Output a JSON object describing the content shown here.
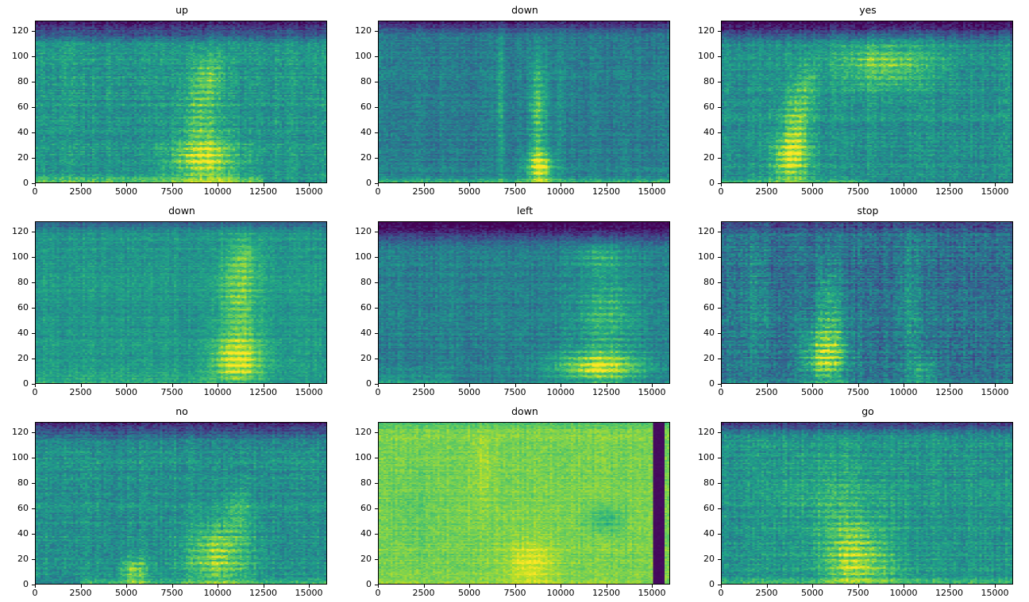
{
  "figure": {
    "background": "#ffffff",
    "rows": 3,
    "cols": 3,
    "tick_color": "#000000",
    "title_color": "#000000",
    "colormap": {
      "name": "viridis",
      "stops": [
        "#440154",
        "#482475",
        "#414487",
        "#355f8d",
        "#2a788e",
        "#21918c",
        "#22a884",
        "#44bf70",
        "#7ad151",
        "#bddf26",
        "#fde725"
      ]
    }
  },
  "chart_data": [
    {
      "type": "heatmap",
      "title": "up",
      "xlabel": "",
      "ylabel": "",
      "xlim": [
        0,
        16000
      ],
      "ylim": [
        0,
        128
      ],
      "xticks": [
        0,
        2500,
        5000,
        7500,
        10000,
        12500,
        15000
      ],
      "yticks": [
        0,
        20,
        40,
        60,
        80,
        100,
        120
      ],
      "grid": false,
      "legend": false,
      "description": "Spectrogram of spoken word 'up': bright energy burst around t=8000-11000 concentrated at low frequency bins, bright band along the bottom, darker band at top frequencies.",
      "render": {
        "seed": 1,
        "base": 0.52,
        "noise": 0.1,
        "top_dark": {
          "start": 0.85,
          "drop": 0.22
        },
        "bottom_band": {
          "h": 0.05,
          "amp": 0.28,
          "x0": 0.0,
          "x1": 0.78
        },
        "blobs": [
          {
            "cx": 0.58,
            "cy": 0.14,
            "sx": 0.11,
            "sy": 0.14,
            "amp": 0.4
          },
          {
            "cx": 0.57,
            "cy": 0.45,
            "sx": 0.06,
            "sy": 0.3,
            "amp": 0.25
          },
          {
            "cx": 0.6,
            "cy": 0.68,
            "sx": 0.05,
            "sy": 0.12,
            "amp": 0.15
          }
        ],
        "dark_stripes": []
      }
    },
    {
      "type": "heatmap",
      "title": "down",
      "xlabel": "",
      "ylabel": "",
      "xlim": [
        0,
        16000
      ],
      "ylim": [
        0,
        128
      ],
      "xticks": [
        0,
        2500,
        5000,
        7500,
        10000,
        12500,
        15000
      ],
      "yticks": [
        0,
        20,
        40,
        60,
        80,
        100,
        120
      ],
      "grid": false,
      "legend": false,
      "description": "Spectrogram of spoken word 'down': dark blue-teal background with a narrow bright vertical stripe near t=9000 spanning all frequencies, strongest yellow blob at the bottom, faint vertical stripe near t=6500.",
      "render": {
        "seed": 2,
        "base": 0.42,
        "noise": 0.09,
        "top_dark": {
          "start": 0.9,
          "drop": 0.15
        },
        "bottom_band": {
          "h": 0.04,
          "amp": 0.3,
          "x0": 0.0,
          "x1": 1.0
        },
        "blobs": [
          {
            "cx": 0.555,
            "cy": 0.1,
            "sx": 0.045,
            "sy": 0.1,
            "amp": 0.55
          },
          {
            "cx": 0.55,
            "cy": 0.45,
            "sx": 0.03,
            "sy": 0.35,
            "amp": 0.35
          },
          {
            "cx": 0.42,
            "cy": 0.5,
            "sx": 0.018,
            "sy": 0.5,
            "amp": 0.18
          },
          {
            "cx": 0.62,
            "cy": 0.5,
            "sx": 0.015,
            "sy": 0.5,
            "amp": 0.12
          }
        ],
        "dark_stripes": []
      }
    },
    {
      "type": "heatmap",
      "title": "yes",
      "xlabel": "",
      "ylabel": "",
      "xlim": [
        0,
        16000
      ],
      "ylim": [
        0,
        128
      ],
      "xticks": [
        0,
        2500,
        5000,
        7500,
        10000,
        12500,
        15000
      ],
      "yticks": [
        0,
        20,
        40,
        60,
        80,
        100,
        120
      ],
      "grid": false,
      "legend": false,
      "description": "Spectrogram of spoken word 'yes': strong yellow low-frequency burst near t=2500-5500 plus a broad bright mid/high-frequency patch around t=6000-11000 at bins 60-115, dark band at top.",
      "render": {
        "seed": 3,
        "base": 0.5,
        "noise": 0.1,
        "top_dark": {
          "start": 0.86,
          "drop": 0.25
        },
        "bottom_band": {
          "h": 0.04,
          "amp": 0.2,
          "x0": 0.0,
          "x1": 0.5
        },
        "blobs": [
          {
            "cx": 0.24,
            "cy": 0.15,
            "sx": 0.065,
            "sy": 0.16,
            "amp": 0.48
          },
          {
            "cx": 0.26,
            "cy": 0.42,
            "sx": 0.045,
            "sy": 0.22,
            "amp": 0.3
          },
          {
            "cx": 0.56,
            "cy": 0.73,
            "sx": 0.17,
            "sy": 0.15,
            "amp": 0.3
          },
          {
            "cx": 0.3,
            "cy": 0.6,
            "sx": 0.03,
            "sy": 0.15,
            "amp": 0.15
          }
        ],
        "dark_stripes": []
      }
    },
    {
      "type": "heatmap",
      "title": "down",
      "xlabel": "",
      "ylabel": "",
      "xlim": [
        0,
        16000
      ],
      "ylim": [
        0,
        128
      ],
      "xticks": [
        0,
        2500,
        5000,
        7500,
        10000,
        12500,
        15000
      ],
      "yticks": [
        0,
        20,
        40,
        60,
        80,
        100,
        120
      ],
      "grid": false,
      "legend": false,
      "description": "Spectrogram of spoken word 'down': fairly uniform green background with a bright vertical region around t=10000-12500 spanning all bins, brightest yellow at low frequencies.",
      "render": {
        "seed": 4,
        "base": 0.53,
        "noise": 0.08,
        "top_dark": {
          "start": 0.93,
          "drop": 0.12
        },
        "bottom_band": {
          "h": 0.1,
          "amp": 0.1,
          "x0": 0.0,
          "x1": 0.62
        },
        "blobs": [
          {
            "cx": 0.695,
            "cy": 0.13,
            "sx": 0.085,
            "sy": 0.14,
            "amp": 0.42
          },
          {
            "cx": 0.7,
            "cy": 0.5,
            "sx": 0.065,
            "sy": 0.35,
            "amp": 0.3
          },
          {
            "cx": 0.72,
            "cy": 0.78,
            "sx": 0.05,
            "sy": 0.1,
            "amp": 0.15
          }
        ],
        "dark_stripes": []
      }
    },
    {
      "type": "heatmap",
      "title": "left",
      "xlabel": "",
      "ylabel": "",
      "xlim": [
        0,
        16000
      ],
      "ylim": [
        0,
        128
      ],
      "xticks": [
        0,
        2500,
        5000,
        7500,
        10000,
        12500,
        15000
      ],
      "yticks": [
        0,
        20,
        40,
        60,
        80,
        100,
        120
      ],
      "grid": false,
      "legend": false,
      "description": "Spectrogram of spoken word 'left': dark teal background with bright striated energy region from t=9500 to 15500, strongest yellow at low frequency bins 0-25, dark band at top.",
      "render": {
        "seed": 5,
        "base": 0.43,
        "noise": 0.09,
        "top_dark": {
          "start": 0.84,
          "drop": 0.22
        },
        "bottom_band": {
          "h": 0.1,
          "amp": 0.12,
          "x0": 0.0,
          "x1": 0.25
        },
        "blobs": [
          {
            "cx": 0.76,
            "cy": 0.1,
            "sx": 0.15,
            "sy": 0.1,
            "amp": 0.52
          },
          {
            "cx": 0.78,
            "cy": 0.42,
            "sx": 0.11,
            "sy": 0.25,
            "amp": 0.25
          },
          {
            "cx": 0.76,
            "cy": 0.78,
            "sx": 0.09,
            "sy": 0.1,
            "amp": 0.18
          }
        ],
        "dark_stripes": []
      }
    },
    {
      "type": "heatmap",
      "title": "stop",
      "xlabel": "",
      "ylabel": "",
      "xlim": [
        0,
        16000
      ],
      "ylim": [
        0,
        128
      ],
      "xticks": [
        0,
        2500,
        5000,
        7500,
        10000,
        12500,
        15000
      ],
      "yticks": [
        0,
        20,
        40,
        60,
        80,
        100,
        120
      ],
      "grid": false,
      "legend": false,
      "description": "Spectrogram of spoken word 'stop': dark blue background with vertical greenish stripes, main bright yellow blob around t=4500-7000 at low/mid frequencies, secondary stripe near t=10500.",
      "render": {
        "seed": 6,
        "base": 0.37,
        "noise": 0.12,
        "top_dark": {
          "start": 0.92,
          "drop": 0.1
        },
        "bottom_band": {
          "h": 0.03,
          "amp": 0.1,
          "x0": 0.0,
          "x1": 1.0
        },
        "blobs": [
          {
            "cx": 0.36,
            "cy": 0.17,
            "sx": 0.075,
            "sy": 0.18,
            "amp": 0.52
          },
          {
            "cx": 0.37,
            "cy": 0.5,
            "sx": 0.05,
            "sy": 0.28,
            "amp": 0.25
          },
          {
            "cx": 0.12,
            "cy": 0.5,
            "sx": 0.045,
            "sy": 0.5,
            "amp": 0.14
          },
          {
            "cx": 0.65,
            "cy": 0.5,
            "sx": 0.035,
            "sy": 0.45,
            "amp": 0.16
          },
          {
            "cx": 0.69,
            "cy": 0.08,
            "sx": 0.05,
            "sy": 0.08,
            "amp": 0.22
          }
        ],
        "dark_stripes": []
      }
    },
    {
      "type": "heatmap",
      "title": "no",
      "xlabel": "",
      "ylabel": "",
      "xlim": [
        0,
        16000
      ],
      "ylim": [
        0,
        128
      ],
      "xticks": [
        0,
        2500,
        5000,
        7500,
        10000,
        12500,
        15000
      ],
      "yticks": [
        0,
        20,
        40,
        60,
        80,
        100,
        120
      ],
      "grid": false,
      "legend": false,
      "description": "Spectrogram of spoken word 'no': green noisy background, rising bright formant blob around t=7500-12500 at low/mid bins, small blob near t=5000 at the bottom, darker top band.",
      "render": {
        "seed": 7,
        "base": 0.5,
        "noise": 0.1,
        "top_dark": {
          "start": 0.88,
          "drop": 0.2
        },
        "bottom_band": {
          "h": 0.05,
          "amp": 0.22,
          "x0": 0.15,
          "x1": 1.0
        },
        "blobs": [
          {
            "cx": 0.63,
            "cy": 0.18,
            "sx": 0.11,
            "sy": 0.2,
            "amp": 0.4
          },
          {
            "cx": 0.34,
            "cy": 0.08,
            "sx": 0.05,
            "sy": 0.09,
            "amp": 0.32
          },
          {
            "cx": 0.7,
            "cy": 0.45,
            "sx": 0.05,
            "sy": 0.15,
            "amp": 0.18
          }
        ],
        "dark_stripes": []
      }
    },
    {
      "type": "heatmap",
      "title": "down",
      "xlabel": "",
      "ylabel": "",
      "xlim": [
        0,
        16000
      ],
      "ylim": [
        0,
        128
      ],
      "xticks": [
        0,
        2500,
        5000,
        7500,
        10000,
        12500,
        15000
      ],
      "yticks": [
        0,
        20,
        40,
        60,
        80,
        100,
        120
      ],
      "grid": false,
      "legend": false,
      "description": "Spectrogram of spoken word 'down': overall bright yellow-green energy across the whole clip, brightest around t=7000-9500 at low bins, distinctive dark purple vertical stripe near t=15300 (silent tail).",
      "render": {
        "seed": 8,
        "base": 0.8,
        "noise": 0.06,
        "top_dark": {
          "start": 0.95,
          "drop": 0.05
        },
        "bottom_band": {
          "h": 0.04,
          "amp": 0.06,
          "x0": 0.0,
          "x1": 0.9
        },
        "blobs": [
          {
            "cx": 0.52,
            "cy": 0.13,
            "sx": 0.08,
            "sy": 0.14,
            "amp": 0.18
          },
          {
            "cx": 0.36,
            "cy": 0.75,
            "sx": 0.04,
            "sy": 0.22,
            "amp": 0.08
          },
          {
            "cx": 0.78,
            "cy": 0.4,
            "sx": 0.06,
            "sy": 0.08,
            "amp": -0.18
          },
          {
            "cx": 0.12,
            "cy": 0.45,
            "sx": 0.08,
            "sy": 0.25,
            "amp": -0.06
          }
        ],
        "dark_stripes": [
          {
            "x0": 0.945,
            "x1": 0.98,
            "value": 0.03
          }
        ]
      }
    },
    {
      "type": "heatmap",
      "title": "go",
      "xlabel": "",
      "ylabel": "",
      "xlim": [
        0,
        16000
      ],
      "ylim": [
        0,
        128
      ],
      "xticks": [
        0,
        2500,
        5000,
        7500,
        10000,
        12500,
        15000
      ],
      "yticks": [
        0,
        20,
        40,
        60,
        80,
        100,
        120
      ],
      "grid": false,
      "legend": false,
      "description": "Spectrogram of spoken word 'go': green noisy background with brighter yellow striated region around t=5500-10000 at low/mid frequencies, slightly darker top band.",
      "render": {
        "seed": 9,
        "base": 0.52,
        "noise": 0.1,
        "top_dark": {
          "start": 0.9,
          "drop": 0.15
        },
        "bottom_band": {
          "h": 0.04,
          "amp": 0.18,
          "x0": 0.0,
          "x1": 1.0
        },
        "blobs": [
          {
            "cx": 0.46,
            "cy": 0.2,
            "sx": 0.11,
            "sy": 0.2,
            "amp": 0.35
          },
          {
            "cx": 0.4,
            "cy": 0.55,
            "sx": 0.18,
            "sy": 0.28,
            "amp": 0.12
          },
          {
            "cx": 0.5,
            "cy": 0.08,
            "sx": 0.15,
            "sy": 0.08,
            "amp": 0.15
          }
        ],
        "dark_stripes": []
      }
    }
  ]
}
